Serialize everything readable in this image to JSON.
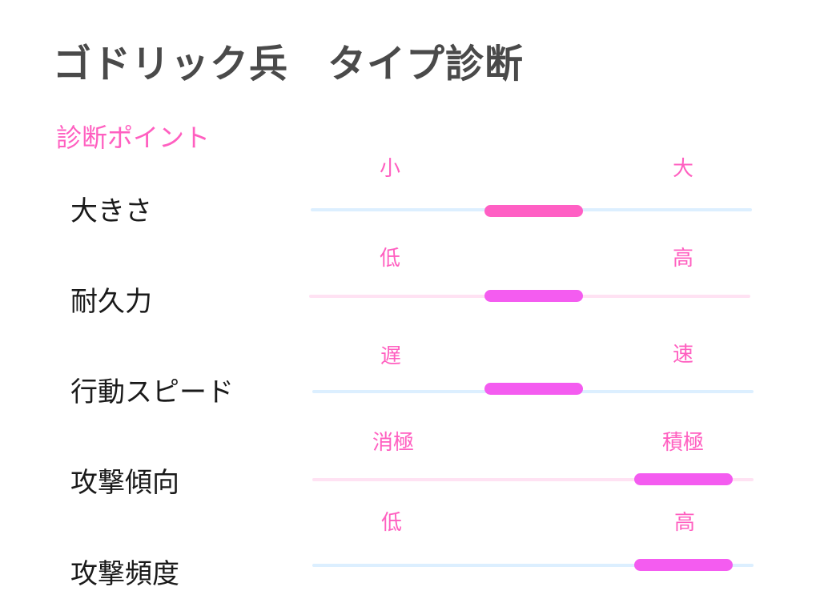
{
  "title": "ゴドリック兵　タイプ診断",
  "subtitle": "診断ポイント",
  "colors": {
    "accent_pink": "#ff5fc0",
    "bar_pink": "#ff5fc4",
    "bar_magenta": "#f45cf0",
    "track_blue": "#dcefff",
    "track_pink": "#ffe2f3"
  },
  "rows": [
    {
      "label": "大きさ",
      "low": "小",
      "high": "大",
      "level": "middle"
    },
    {
      "label": "耐久力",
      "low": "低",
      "high": "高",
      "level": "middle"
    },
    {
      "label": "行動スピード",
      "low": "遅",
      "high": "速",
      "level": "middle"
    },
    {
      "label": "攻撃傾向",
      "low": "消極",
      "high": "積極",
      "level": "high"
    },
    {
      "label": "攻撃頻度",
      "low": "低",
      "high": "高",
      "level": "high"
    }
  ]
}
